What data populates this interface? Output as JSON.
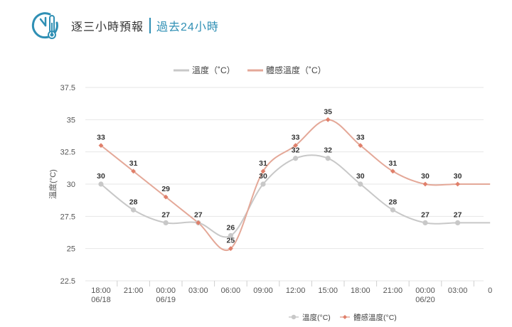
{
  "header": {
    "title": "逐三小時預報",
    "subtitle": "過去24小時",
    "logo_icon": "clock-thermometer-icon"
  },
  "colors": {
    "temp": "#c8c8c8",
    "feels": "#e4a898",
    "feels_marker": "#e07f6a",
    "grid": "#e6e6e6",
    "accent": "#2f8fb4"
  },
  "chart_data": {
    "type": "line",
    "ylabel": "溫度(°C)",
    "ylim": [
      22.5,
      37.5
    ],
    "yticks": [
      "22.5",
      "25",
      "27.5",
      "30",
      "32.5",
      "35",
      "37.5"
    ],
    "x_labels": [
      {
        "time": "18:00",
        "date": "06/18"
      },
      {
        "time": "21:00",
        "date": ""
      },
      {
        "time": "00:00",
        "date": "06/19"
      },
      {
        "time": "03:00",
        "date": ""
      },
      {
        "time": "06:00",
        "date": ""
      },
      {
        "time": "09:00",
        "date": ""
      },
      {
        "time": "12:00",
        "date": ""
      },
      {
        "time": "15:00",
        "date": ""
      },
      {
        "time": "18:00",
        "date": ""
      },
      {
        "time": "21:00",
        "date": ""
      },
      {
        "time": "00:00",
        "date": "06/20"
      },
      {
        "time": "03:00",
        "date": ""
      },
      {
        "time": "0",
        "date": ""
      }
    ],
    "top_legend": [
      "溫度（˚C）",
      "體感溫度（˚C）"
    ],
    "bottom_legend": [
      "溫度(°C)",
      "體感溫度(°C)"
    ],
    "series": [
      {
        "name": "溫度(°C)",
        "values": [
          30,
          28,
          27,
          27,
          26,
          30,
          32,
          32,
          30,
          28,
          27,
          27,
          27
        ],
        "labels": [
          "30",
          "28",
          "27",
          "",
          "26",
          "30",
          "32",
          "32",
          "30",
          "28",
          "27",
          "27",
          ""
        ]
      },
      {
        "name": "體感溫度(°C)",
        "values": [
          33,
          31,
          29,
          27,
          25,
          31,
          33,
          35,
          33,
          31,
          30,
          30,
          30
        ],
        "labels": [
          "33",
          "31",
          "29",
          "27",
          "25",
          "31",
          "33",
          "35",
          "33",
          "31",
          "30",
          "30",
          ""
        ]
      }
    ]
  }
}
